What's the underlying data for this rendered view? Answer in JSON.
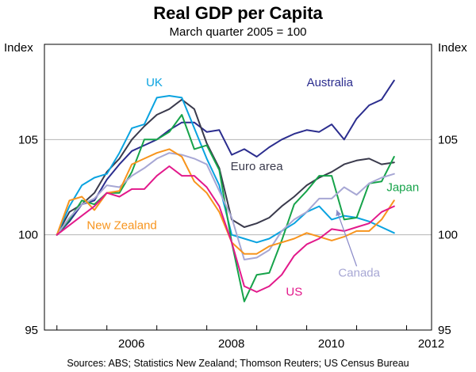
{
  "chart_data": {
    "type": "line",
    "title": "Real GDP per Capita",
    "subtitle": "March quarter 2005 = 100",
    "ylabel_left": "Index",
    "ylabel_right": "Index",
    "ylim": [
      95,
      110
    ],
    "yticks": [
      95,
      100,
      105
    ],
    "xlim": [
      2004.75,
      2012.5
    ],
    "xticks": [
      2006,
      2008,
      2010,
      2012
    ],
    "xtick_labels": [
      "2006",
      "2008",
      "2010",
      "2012"
    ],
    "source": "Sources: ABS; Statistics New Zealand; Thomson Reuters; US Census Bureau",
    "series": [
      {
        "name": "Australia",
        "color": "#2b2d8e",
        "x": [
          2005.0,
          2005.25,
          2005.5,
          2005.75,
          2006.0,
          2006.25,
          2006.5,
          2006.75,
          2007.0,
          2007.25,
          2007.5,
          2007.75,
          2008.0,
          2008.25,
          2008.5,
          2008.75,
          2009.0,
          2009.25,
          2009.5,
          2009.75,
          2010.0,
          2010.25,
          2010.5,
          2010.75,
          2011.0,
          2011.25,
          2011.5,
          2011.75
        ],
        "values": [
          100.0,
          100.7,
          101.6,
          101.8,
          102.9,
          103.7,
          104.4,
          104.7,
          105.0,
          105.5,
          105.9,
          105.9,
          105.4,
          105.5,
          104.2,
          104.5,
          104.1,
          104.6,
          105.0,
          105.3,
          105.5,
          105.4,
          105.8,
          105.0,
          106.1,
          106.8,
          107.1,
          108.1
        ]
      },
      {
        "name": "Euro area",
        "color": "#3a3a4c",
        "x": [
          2005.0,
          2005.25,
          2005.5,
          2005.75,
          2006.0,
          2006.25,
          2006.5,
          2006.75,
          2007.0,
          2007.25,
          2007.5,
          2007.75,
          2008.0,
          2008.25,
          2008.5,
          2008.75,
          2009.0,
          2009.25,
          2009.5,
          2009.75,
          2010.0,
          2010.25,
          2010.5,
          2010.75,
          2011.0,
          2011.25,
          2011.5,
          2011.75
        ],
        "values": [
          100.0,
          101.2,
          101.6,
          102.2,
          103.3,
          104.0,
          105.0,
          105.7,
          106.3,
          106.6,
          107.1,
          106.6,
          104.8,
          103.5,
          100.8,
          100.4,
          100.6,
          100.9,
          101.5,
          102.0,
          102.6,
          103.0,
          103.3,
          103.7,
          103.9,
          104.0,
          103.7,
          103.8
        ]
      },
      {
        "name": "UK",
        "color": "#0aa3e0",
        "x": [
          2005.0,
          2005.25,
          2005.5,
          2005.75,
          2006.0,
          2006.25,
          2006.5,
          2006.75,
          2007.0,
          2007.25,
          2007.5,
          2007.75,
          2008.0,
          2008.25,
          2008.5,
          2008.75,
          2009.0,
          2009.25,
          2009.5,
          2009.75,
          2010.0,
          2010.25,
          2010.5,
          2010.75,
          2011.0,
          2011.25,
          2011.5,
          2011.75
        ],
        "values": [
          100.0,
          101.5,
          102.6,
          103.0,
          103.2,
          104.3,
          105.6,
          105.8,
          107.2,
          107.3,
          107.2,
          105.6,
          104.0,
          102.6,
          100.0,
          99.8,
          99.6,
          99.8,
          100.2,
          100.6,
          101.2,
          101.5,
          100.8,
          101.0,
          100.9,
          100.7,
          100.4,
          100.1
        ]
      },
      {
        "name": "Japan",
        "color": "#16a34a",
        "x": [
          2005.0,
          2005.25,
          2005.5,
          2005.75,
          2006.0,
          2006.25,
          2006.5,
          2006.75,
          2007.0,
          2007.25,
          2007.5,
          2007.75,
          2008.0,
          2008.25,
          2008.5,
          2008.75,
          2009.0,
          2009.25,
          2009.5,
          2009.75,
          2010.0,
          2010.25,
          2010.5,
          2010.75,
          2011.0,
          2011.25,
          2011.5,
          2011.75
        ],
        "values": [
          100.0,
          100.8,
          101.8,
          101.6,
          102.2,
          102.2,
          103.3,
          105.0,
          105.0,
          105.4,
          106.3,
          104.5,
          104.7,
          103.4,
          99.6,
          96.5,
          97.9,
          98.0,
          99.7,
          101.6,
          102.3,
          103.1,
          103.1,
          100.8,
          100.9,
          102.7,
          102.8,
          104.1
        ]
      },
      {
        "name": "Canada",
        "color": "#a7a7d4",
        "x": [
          2005.0,
          2005.25,
          2005.5,
          2005.75,
          2006.0,
          2006.25,
          2006.5,
          2006.75,
          2007.0,
          2007.25,
          2007.5,
          2007.75,
          2008.0,
          2008.25,
          2008.5,
          2008.75,
          2009.0,
          2009.25,
          2009.5,
          2009.75,
          2010.0,
          2010.25,
          2010.5,
          2010.75,
          2011.0,
          2011.25,
          2011.5,
          2011.75
        ],
        "values": [
          100.0,
          100.9,
          101.6,
          101.9,
          102.6,
          102.5,
          103.1,
          103.5,
          104.0,
          104.3,
          104.2,
          104.0,
          103.7,
          102.3,
          100.9,
          98.7,
          98.8,
          99.2,
          100.2,
          100.8,
          101.2,
          101.9,
          101.9,
          102.5,
          102.1,
          102.7,
          103.0,
          103.2
        ]
      },
      {
        "name": "New Zealand",
        "color": "#f7941d",
        "x": [
          2005.0,
          2005.25,
          2005.5,
          2005.75,
          2006.0,
          2006.25,
          2006.5,
          2006.75,
          2007.0,
          2007.25,
          2007.5,
          2007.75,
          2008.0,
          2008.25,
          2008.5,
          2008.75,
          2009.0,
          2009.25,
          2009.5,
          2009.75,
          2010.0,
          2010.25,
          2010.5,
          2010.75,
          2011.0,
          2011.25,
          2011.5,
          2011.75
        ],
        "values": [
          100.0,
          101.8,
          102.0,
          101.3,
          102.2,
          102.3,
          103.7,
          104.0,
          104.3,
          104.5,
          104.1,
          102.8,
          102.2,
          101.2,
          99.6,
          99.0,
          99.0,
          99.4,
          99.6,
          99.8,
          100.1,
          99.9,
          99.7,
          99.9,
          100.2,
          100.2,
          100.8,
          101.8
        ]
      },
      {
        "name": "US",
        "color": "#e2198b",
        "x": [
          2005.0,
          2005.25,
          2005.5,
          2005.75,
          2006.0,
          2006.25,
          2006.5,
          2006.75,
          2007.0,
          2007.25,
          2007.5,
          2007.75,
          2008.0,
          2008.25,
          2008.5,
          2008.75,
          2009.0,
          2009.25,
          2009.5,
          2009.75,
          2010.0,
          2010.25,
          2010.5,
          2010.75,
          2011.0,
          2011.25,
          2011.5,
          2011.75
        ],
        "values": [
          100.0,
          100.5,
          101.0,
          101.5,
          102.2,
          102.0,
          102.4,
          102.4,
          103.1,
          103.6,
          103.1,
          103.1,
          102.5,
          101.5,
          99.6,
          97.3,
          97.0,
          97.3,
          97.9,
          98.9,
          99.5,
          99.8,
          100.3,
          100.2,
          100.4,
          100.6,
          101.2,
          101.5
        ]
      }
    ],
    "labels": [
      {
        "name": "UK",
        "color": "#0aa3e0",
        "x": 2006.95,
        "y": 107.8,
        "anchor": "middle"
      },
      {
        "name": "Australia",
        "color": "#2b2d8e",
        "x": 2010.0,
        "y": 107.8,
        "anchor": "start"
      },
      {
        "name": "Euro area",
        "color": "#3a3a4c",
        "x": 2009.0,
        "y": 103.4,
        "anchor": "middle"
      },
      {
        "name": "Japan",
        "color": "#16a34a",
        "x": 2011.6,
        "y": 102.3,
        "anchor": "start"
      },
      {
        "name": "New Zealand",
        "color": "#f7941d",
        "x": 2006.3,
        "y": 100.3,
        "anchor": "middle"
      },
      {
        "name": "Canada",
        "color": "#a7a7d4",
        "x": 2011.05,
        "y": 97.8,
        "anchor": "middle"
      },
      {
        "name": "US",
        "color": "#e2198b",
        "x": 2009.75,
        "y": 96.8,
        "anchor": "middle"
      }
    ]
  }
}
